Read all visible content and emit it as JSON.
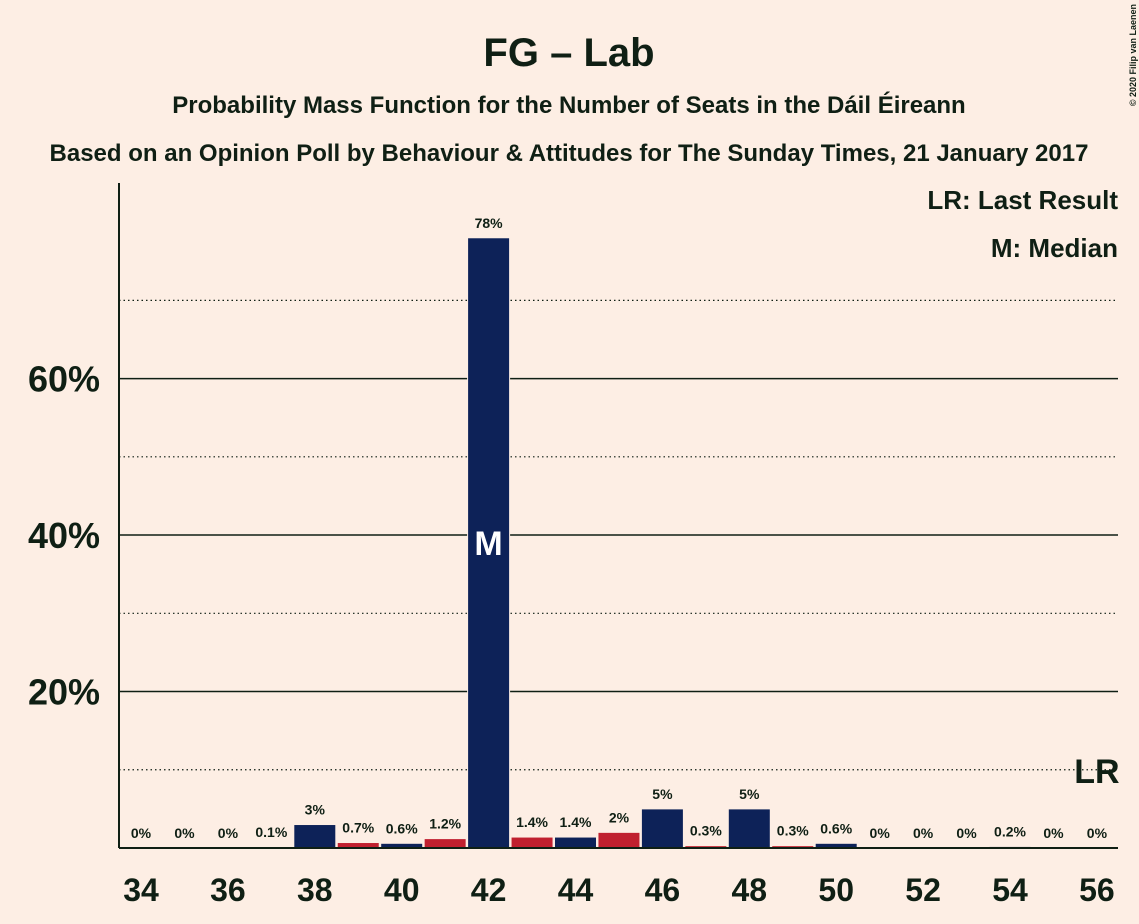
{
  "chart_data": {
    "type": "bar",
    "title": "FG – Lab",
    "subtitle": "Probability Mass Function for the Number of Seats in the Dáil Éireann",
    "subtitle2": "Based on an Opinion Poll by Behaviour & Attitudes for The Sunday Times, 21 January 2017",
    "copyright": "© 2020 Filip van Laenen",
    "legend": [
      "LR: Last Result",
      "M: Median"
    ],
    "categories": [
      34,
      null,
      36,
      null,
      38,
      null,
      40,
      null,
      42,
      null,
      44,
      null,
      46,
      null,
      48,
      null,
      50,
      null,
      52,
      null,
      54,
      null,
      56
    ],
    "values": [
      0,
      0,
      0,
      0.1,
      3,
      0.7,
      0.6,
      1.2,
      78,
      1.4,
      1.4,
      2,
      5,
      0.3,
      5,
      0.3,
      0.6,
      0,
      0,
      0,
      0.2,
      0,
      0
    ],
    "value_labels": [
      "0%",
      "0%",
      "0%",
      "0.1%",
      "3%",
      "0.7%",
      "0.6%",
      "1.2%",
      "78%",
      "1.4%",
      "1.4%",
      "2%",
      "5%",
      "0.3%",
      "5%",
      "0.3%",
      "0.6%",
      "0%",
      "0%",
      "0%",
      "0.2%",
      "0%",
      "0%"
    ],
    "colors": [
      "#0d2258",
      "#c0202f",
      "#0d2258",
      "#c0202f",
      "#0d2258",
      "#c0202f",
      "#0d2258",
      "#c0202f",
      "#0d2258",
      "#c0202f",
      "#0d2258",
      "#c0202f",
      "#0d2258",
      "#c0202f",
      "#0d2258",
      "#c0202f",
      "#0d2258",
      "#c0202f",
      "#0d2258",
      "#c0202f",
      "#0d2258",
      "#c0202f",
      "#0d2258"
    ],
    "annotations": [
      {
        "text": "M",
        "x": 42
      },
      {
        "text": "LR",
        "x": 56
      }
    ],
    "ylim": [
      0,
      85
    ],
    "yticks": [
      {
        "value": 20,
        "label": "20%"
      },
      {
        "value": 40,
        "label": "40%"
      },
      {
        "value": 60,
        "label": "60%"
      }
    ],
    "minor_yticks": [
      10,
      30,
      50,
      70
    ],
    "grid": true
  }
}
